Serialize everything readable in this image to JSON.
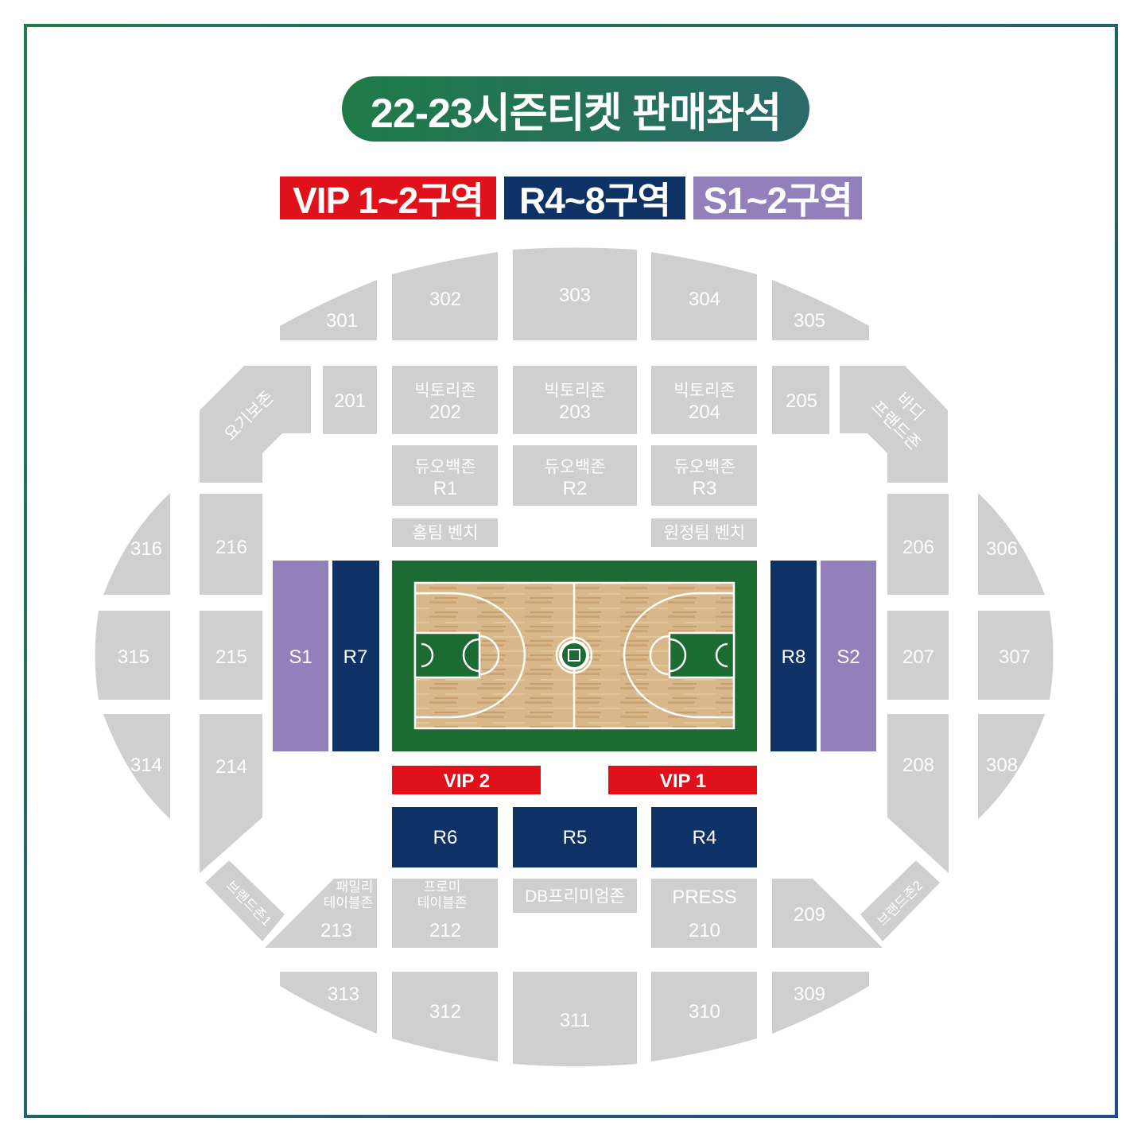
{
  "title": "22-23시즌티켓 판매좌석",
  "legend": {
    "vip": "VIP 1~2구역",
    "r": "R4~8구역",
    "s": "S1~2구역"
  },
  "colors": {
    "vip": "#e0111b",
    "r": "#0e3266",
    "s": "#937fba",
    "section": "#cfcfcf",
    "court_border": "#1b6b32",
    "title_bg": "#1f7a47"
  },
  "sections": {
    "s301": "301",
    "s302": "302",
    "s303": "303",
    "s304": "304",
    "s305": "305",
    "s306": "306",
    "s307": "307",
    "s308": "308",
    "s309": "309",
    "s310": "310",
    "s311": "311",
    "s312": "312",
    "s313": "313",
    "s314": "314",
    "s315": "315",
    "s316": "316",
    "s201": "201",
    "s205": "205",
    "s206": "206",
    "s207": "207",
    "s208": "208",
    "s209": "209",
    "s210": "210",
    "s212": "212",
    "s213": "213",
    "s214": "214",
    "s215": "215",
    "s216": "216",
    "victory_label": "빅토리존",
    "s202": "202",
    "s203": "203",
    "s204": "204",
    "duo_label": "듀오백존",
    "r1": "R1",
    "r2": "R2",
    "r3": "R3",
    "home_bench": "홈팀 벤치",
    "away_bench": "원정팀 벤치",
    "s1": "S1",
    "s2": "S2",
    "r7": "R7",
    "r8": "R8",
    "vip1": "VIP 1",
    "vip2": "VIP 2",
    "r4": "R4",
    "r5": "R5",
    "r6": "R6",
    "yogibo": "요기보존",
    "body_line1": "바디",
    "body_line2": "프랜드존",
    "brand1": "브랜드존1",
    "brand2": "브랜드존2",
    "family_line1": "패밀리",
    "family_line2": "테이블존",
    "promi_line1": "프로미",
    "promi_line2": "테이블존",
    "db_premium": "DB프리미엄존",
    "press": "PRESS"
  }
}
